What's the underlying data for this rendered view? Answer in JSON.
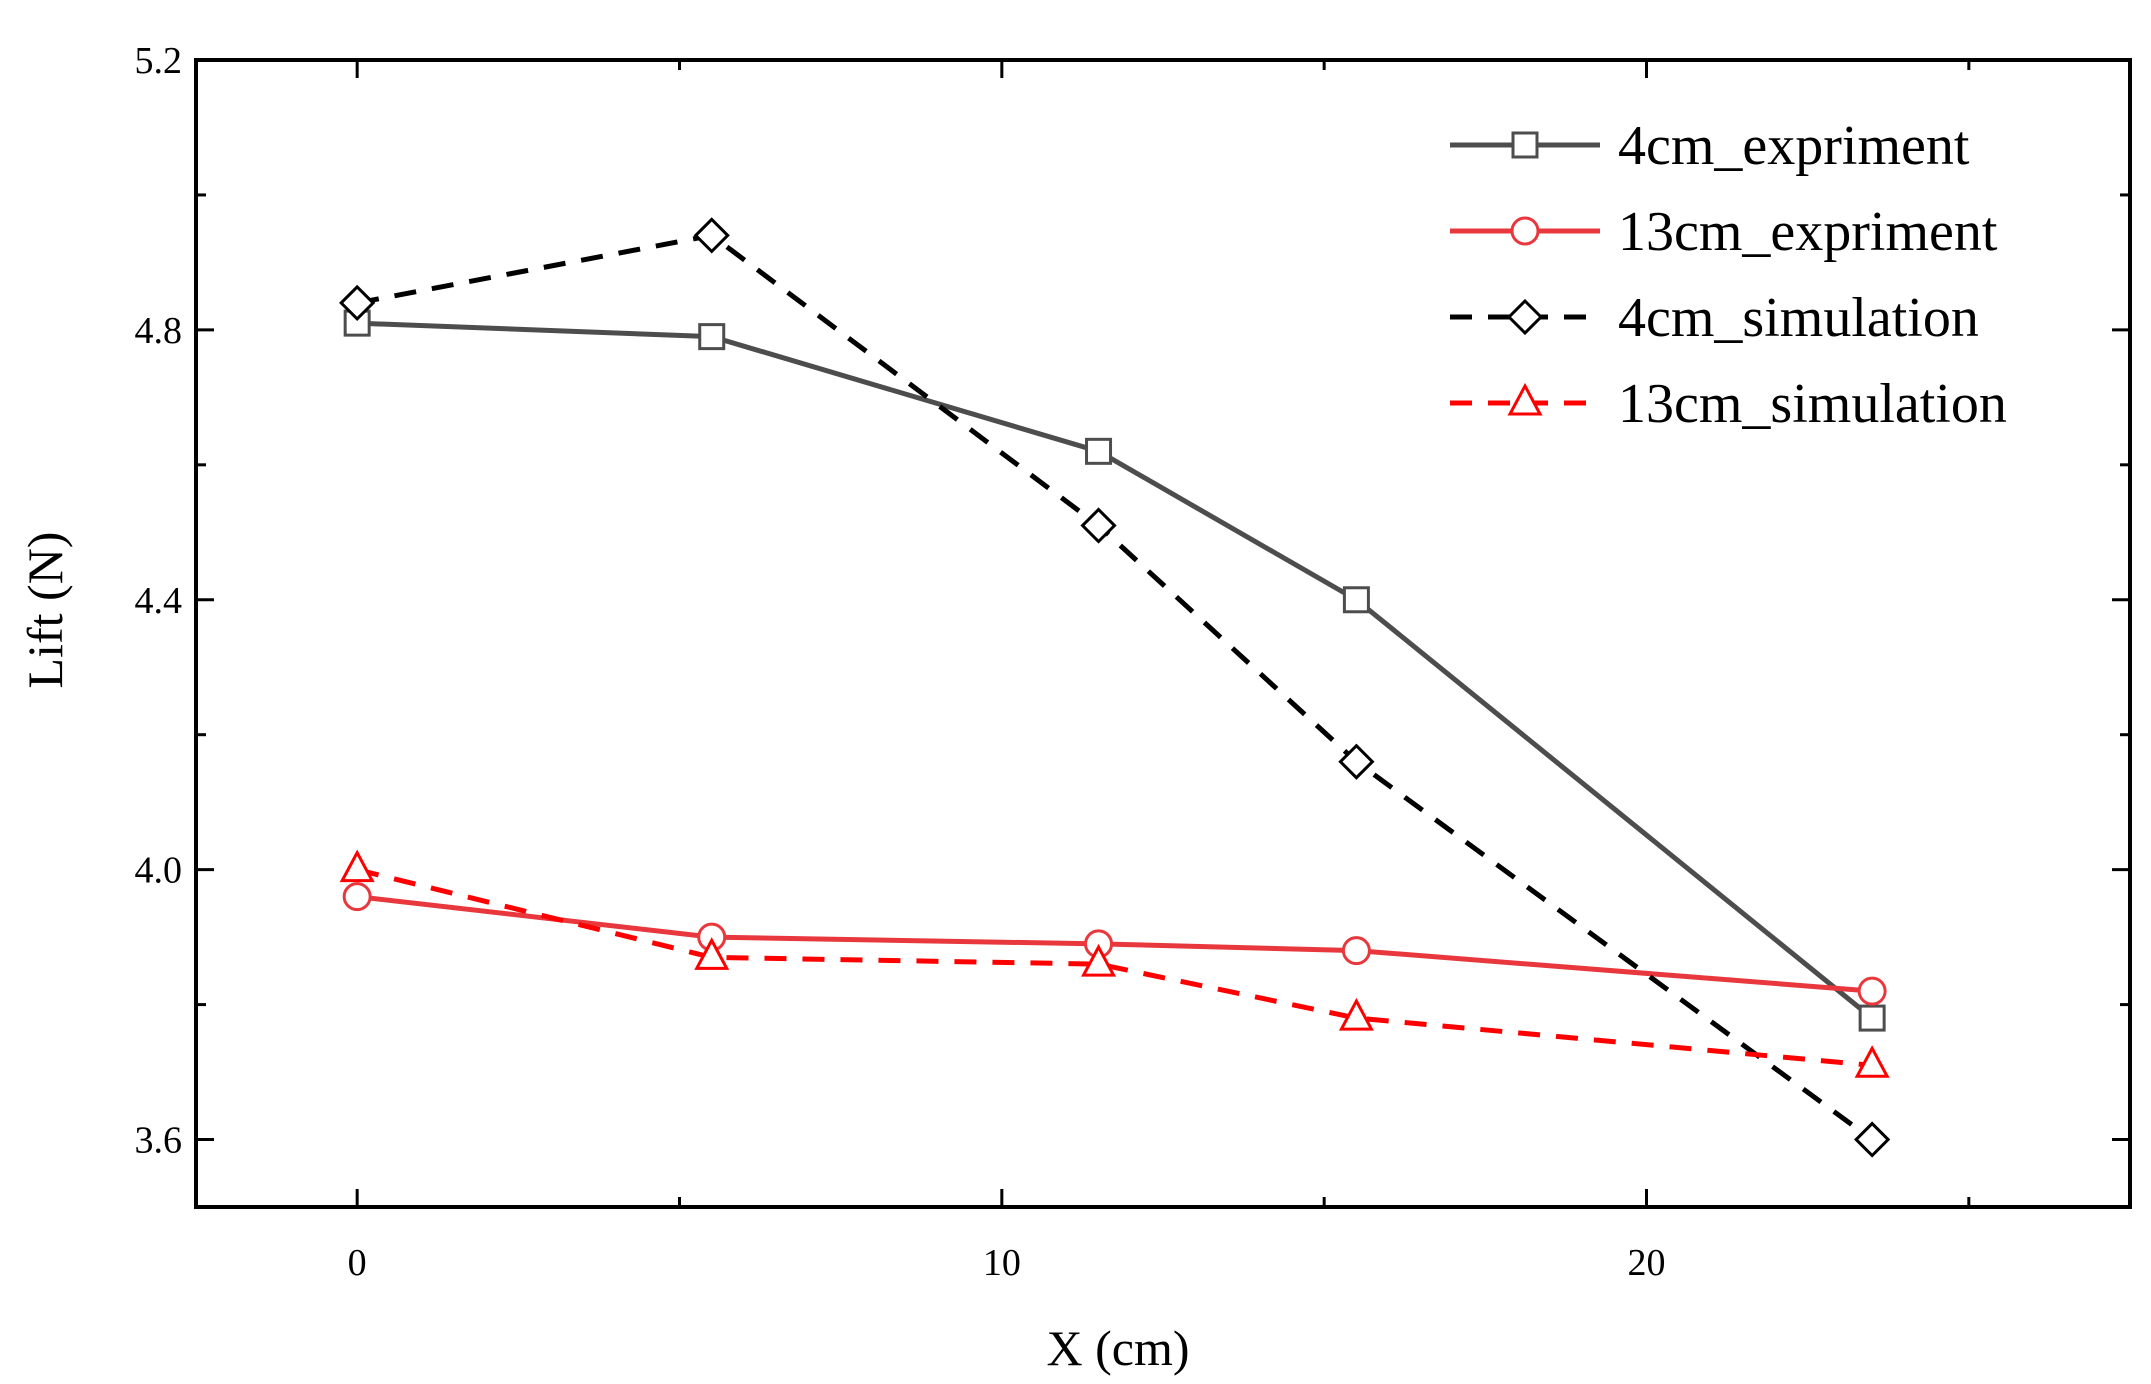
{
  "chart_data": {
    "type": "line",
    "title": "",
    "xlabel": "X (cm)",
    "ylabel": "Lift (N)",
    "xlim": [
      -2.5,
      27.5
    ],
    "ylim": [
      3.5,
      5.2
    ],
    "xticks": [
      0,
      10,
      20
    ],
    "xtick_labels": [
      "0",
      "10",
      "20"
    ],
    "xminor": [
      5,
      15,
      25
    ],
    "yticks": [
      3.6,
      4.0,
      4.4,
      4.8,
      5.2
    ],
    "ytick_labels": [
      "3.6",
      "4.0",
      "4.4",
      "4.8",
      "5.2"
    ],
    "yminor": [
      3.8,
      4.2,
      4.6,
      5.0
    ],
    "grid": false,
    "legend_position": "top-right",
    "series": [
      {
        "name": "4cm_expriment",
        "color": "#4d4d4d",
        "dash": "solid",
        "marker": "square",
        "x": [
          0,
          5.5,
          11.5,
          15.5,
          23.5
        ],
        "y": [
          4.81,
          4.79,
          4.62,
          4.4,
          3.78
        ]
      },
      {
        "name": "13cm_expriment",
        "color": "#e8383d",
        "dash": "solid",
        "marker": "circle",
        "x": [
          0,
          5.5,
          11.5,
          15.5,
          23.5
        ],
        "y": [
          3.96,
          3.9,
          3.89,
          3.88,
          3.82
        ]
      },
      {
        "name": "4cm_simulation",
        "color": "#000000",
        "dash": "dashed",
        "marker": "diamond",
        "x": [
          0,
          5.5,
          11.5,
          15.5,
          23.5
        ],
        "y": [
          4.84,
          4.94,
          4.51,
          4.16,
          3.6
        ]
      },
      {
        "name": "13cm_simulation",
        "color": "#ff0000",
        "dash": "dashed",
        "marker": "triangle",
        "x": [
          0,
          5.5,
          11.5,
          15.5,
          23.5
        ],
        "y": [
          4.0,
          3.87,
          3.86,
          3.78,
          3.71
        ]
      }
    ]
  }
}
